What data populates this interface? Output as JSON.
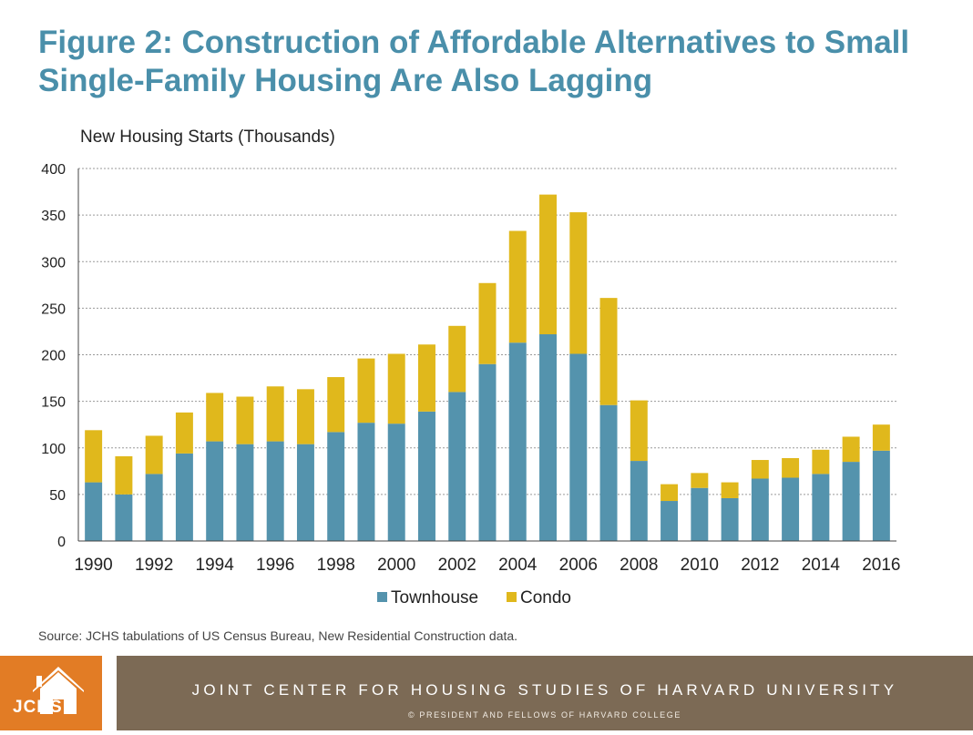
{
  "title": {
    "line1": "Figure 2: Construction of Affordable Alternatives to Small",
    "line2": "Single-Family Housing Are Also Lagging"
  },
  "source": "Source: JCHS tabulations of US Census Bureau, New Residential Construction data.",
  "footer": {
    "logo": "JCHS",
    "organization": "JOINT CENTER FOR HOUSING STUDIES OF HARVARD UNIVERSITY",
    "copyright": "© PRESIDENT AND FELLOWS OF HARVARD COLLEGE"
  },
  "colors": {
    "townhouse": "#5493ad",
    "condo": "#e0b81c",
    "title": "#4a8faa",
    "footer_band": "#7c6a55",
    "logo": "#e27c25"
  },
  "chart_data": {
    "type": "bar",
    "stacked": true,
    "ylabel": "New Housing Starts (Thousands)",
    "xlabel": "",
    "ylim": [
      0,
      400
    ],
    "yticks": [
      0,
      50,
      100,
      150,
      200,
      250,
      300,
      350,
      400
    ],
    "grid": true,
    "legend": "bottom",
    "categories": [
      "1990",
      "1991",
      "1992",
      "1993",
      "1994",
      "1995",
      "1996",
      "1997",
      "1998",
      "1999",
      "2000",
      "2001",
      "2002",
      "2003",
      "2004",
      "2005",
      "2006",
      "2007",
      "2008",
      "2009",
      "2010",
      "2011",
      "2012",
      "2013",
      "2014",
      "2015",
      "2016"
    ],
    "xtick_labels": [
      "1990",
      "",
      "1992",
      "",
      "1994",
      "",
      "1996",
      "",
      "1998",
      "",
      "2000",
      "",
      "2002",
      "",
      "2004",
      "",
      "2006",
      "",
      "2008",
      "",
      "2010",
      "",
      "2012",
      "",
      "2014",
      "",
      "2016"
    ],
    "series": [
      {
        "name": "Townhouse",
        "color": "#5493ad",
        "values": [
          63,
          50,
          72,
          94,
          107,
          104,
          107,
          104,
          117,
          127,
          126,
          139,
          160,
          190,
          213,
          222,
          201,
          146,
          86,
          43,
          57,
          46,
          67,
          68,
          72,
          85,
          97
        ]
      },
      {
        "name": "Condo",
        "color": "#e0b81c",
        "values": [
          56,
          41,
          41,
          44,
          52,
          51,
          59,
          59,
          59,
          69,
          75,
          72,
          71,
          87,
          120,
          150,
          152,
          115,
          65,
          18,
          16,
          17,
          20,
          21,
          26,
          27,
          28
        ]
      }
    ]
  }
}
